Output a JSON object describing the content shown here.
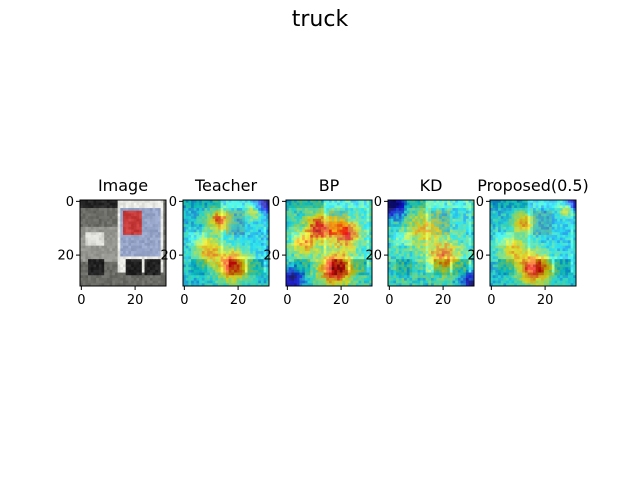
{
  "title": "truck",
  "chart_data": {
    "type": "heatmap",
    "panels": [
      {
        "title": "Image",
        "kind": "photo"
      },
      {
        "title": "Teacher",
        "kind": "attention"
      },
      {
        "title": "BP",
        "kind": "attention"
      },
      {
        "title": "KD",
        "kind": "attention"
      },
      {
        "title": "Proposed(0.5)",
        "kind": "attention"
      }
    ],
    "image_size": [
      32,
      32
    ],
    "x_ticks": [
      0,
      20
    ],
    "y_ticks": [
      0,
      20
    ],
    "xlim": [
      0,
      32
    ],
    "ylim": [
      32,
      0
    ],
    "colormap": "jet",
    "colors": {
      "jet": [
        "#00007f",
        "#0000ff",
        "#007fff",
        "#00ffff",
        "#7fff7f",
        "#ffff00",
        "#ff7f00",
        "#ff0000",
        "#7f0000"
      ],
      "photo_bg": "#6b6b66",
      "photo_truck_white": "#e8e8e4",
      "photo_sign_blue": "#5f78b6"
    }
  }
}
